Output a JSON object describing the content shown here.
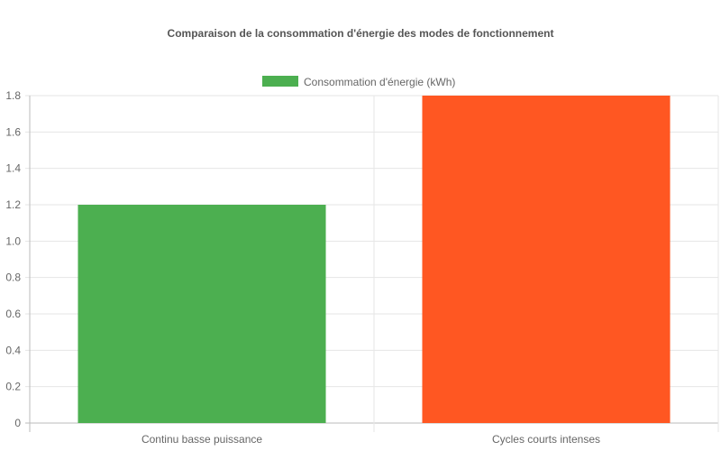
{
  "chart_data": {
    "type": "bar",
    "title": "Comparaison de la consommation d'énergie des modes de fonctionnement",
    "categories": [
      "Continu basse puissance",
      "Cycles courts intenses"
    ],
    "series": [
      {
        "name": "Consommation d'énergie (kWh)",
        "values": [
          1.2,
          1.8
        ],
        "colors": [
          "#4caf50",
          "#ff5722"
        ]
      }
    ],
    "xlabel": "",
    "ylabel": "",
    "ylim": [
      0,
      1.8
    ],
    "yticks": [
      "0",
      "0.2",
      "0.4",
      "0.6",
      "0.8",
      "1.0",
      "1.2",
      "1.4",
      "1.6",
      "1.8"
    ],
    "legend_position": "top",
    "grid": true
  }
}
